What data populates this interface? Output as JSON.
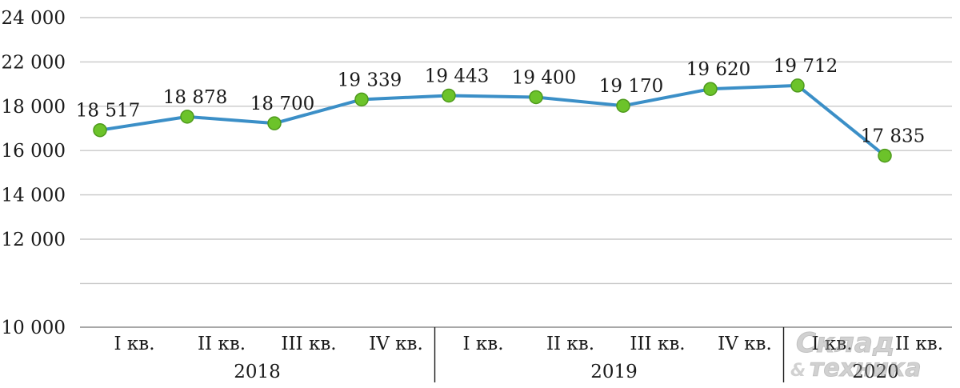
{
  "chart_data": {
    "type": "line",
    "title": "",
    "xlabel": "",
    "ylabel": "",
    "ylim": [
      10000,
      24000
    ],
    "yticks": [
      10000,
      12000,
      14000,
      16000,
      18000,
      22000,
      24000
    ],
    "ytick_labels": [
      "10 000",
      "12 000",
      "14 000",
      "16 000",
      "18 000",
      "22 000",
      "24 000"
    ],
    "grid": true,
    "categories": [
      "I кв.",
      "II кв.",
      "III кв.",
      "IV кв.",
      "I кв.",
      "II кв.",
      "III кв.",
      "IV кв.",
      "I кв.",
      "II кв."
    ],
    "groups": [
      {
        "label": "2018",
        "count": 4
      },
      {
        "label": "2019",
        "count": 4
      },
      {
        "label": "2020",
        "count": 2
      }
    ],
    "series": [
      {
        "values": [
          18517,
          18878,
          18700,
          19339,
          19443,
          19400,
          19170,
          19620,
          19712,
          17835
        ],
        "labels": [
          "18 517",
          "18 878",
          "18 700",
          "19 339",
          "19 443",
          "19 400",
          "19 170",
          "19 620",
          "19 712",
          "17 835"
        ],
        "line_color": "#3b8fc7",
        "marker_color": "#6cc32a"
      }
    ]
  },
  "watermark": {
    "line1": "Склад",
    "line2": "техника",
    "amp": "&"
  }
}
